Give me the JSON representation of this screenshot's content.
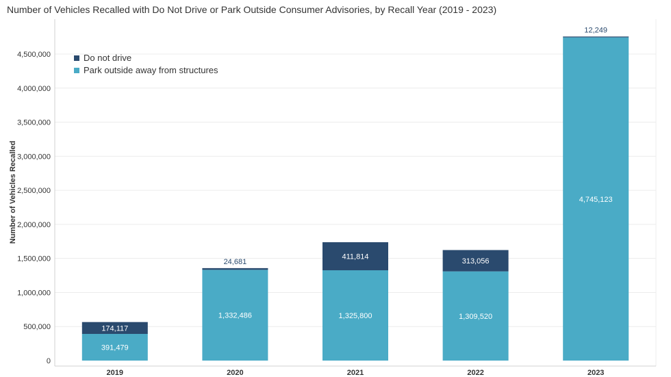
{
  "chart_data": {
    "type": "bar",
    "stacked": true,
    "title": "Number of Vehicles Recalled with Do Not Drive or Park Outside Consumer Advisories, by Recall Year (2019 - 2023)",
    "xlabel": "",
    "ylabel": "Number of Vehicles Recalled",
    "categories": [
      "2019",
      "2020",
      "2021",
      "2022",
      "2023"
    ],
    "series": [
      {
        "name": "Park outside away from structures",
        "color": "#4aabc6",
        "values": [
          391479,
          1332486,
          1325800,
          1309520,
          4745123
        ],
        "labels": [
          "391,479",
          "1,332,486",
          "1,325,800",
          "1,309,520",
          "4,745,123"
        ]
      },
      {
        "name": "Do not drive",
        "color": "#2a4a6e",
        "values": [
          174117,
          24681,
          411814,
          313056,
          12249
        ],
        "labels": [
          "174,117",
          "24,681",
          "411,814",
          "313,056",
          "12,249"
        ]
      }
    ],
    "ylim": [
      0,
      5000000
    ],
    "yticks": [
      0,
      500000,
      1000000,
      1500000,
      2000000,
      2500000,
      3000000,
      3500000,
      4000000,
      4500000
    ],
    "ytick_labels": [
      "0",
      "500,000",
      "1,000,000",
      "1,500,000",
      "2,000,000",
      "2,500,000",
      "3,000,000",
      "3,500,000",
      "4,000,000",
      "4,500,000"
    ],
    "legend": "top-left",
    "grid": true
  }
}
